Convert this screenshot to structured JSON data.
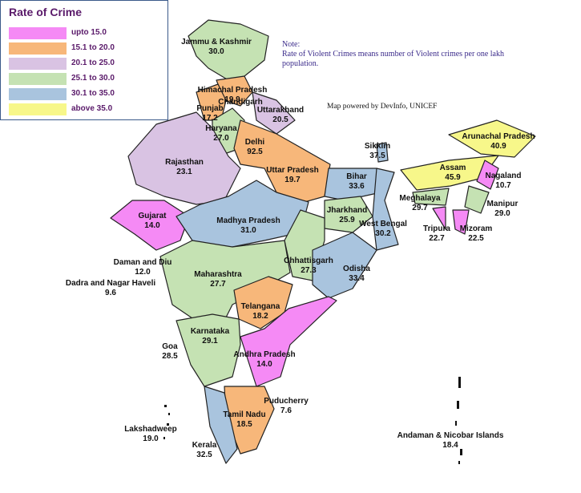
{
  "legend": {
    "title": "Rate of Crime",
    "items": [
      {
        "label": "upto 15.0",
        "color": "#f58af5"
      },
      {
        "label": "15.1 to 20.0",
        "color": "#f7b77a"
      },
      {
        "label": "20.1 to 25.0",
        "color": "#d9c3e3"
      },
      {
        "label": "25.1 to 30.0",
        "color": "#c5e2b3"
      },
      {
        "label": "30.1 to 35.0",
        "color": "#a9c4de"
      },
      {
        "label": "above 35.0",
        "color": "#f7f78a"
      }
    ]
  },
  "note": {
    "heading": "Note:",
    "text": "Rate of Violent Crimes means number of Violent crimes per one lakh population."
  },
  "credit": "Map powered by DevInfo, UNICEF",
  "states": [
    {
      "name": "Jammu & Kashmir",
      "value": "30.0"
    },
    {
      "name": "Himachal Pradesh",
      "value": "19.9"
    },
    {
      "name": "Punjab",
      "value": "17.2"
    },
    {
      "name": "Chandigarh"
    },
    {
      "name": "Haryana",
      "value": "27.0"
    },
    {
      "name": "Uttarakhand",
      "value": "20.5"
    },
    {
      "name": "Delhi",
      "value": "92.5"
    },
    {
      "name": "Rajasthan",
      "value": "23.1"
    },
    {
      "name": "Uttar Pradesh",
      "value": "19.7"
    },
    {
      "name": "Gujarat",
      "value": "14.0"
    },
    {
      "name": "Madhya Pradesh",
      "value": "31.0"
    },
    {
      "name": "Bihar",
      "value": "33.6"
    },
    {
      "name": "Jharkhand",
      "value": "25.9"
    },
    {
      "name": "West Bengal",
      "value": "30.2"
    },
    {
      "name": "Chhattisgarh",
      "value": "27.3"
    },
    {
      "name": "Odisha",
      "value": "33.4"
    },
    {
      "name": "Maharashtra",
      "value": "27.7"
    },
    {
      "name": "Telangana",
      "value": "18.2"
    },
    {
      "name": "Karnataka",
      "value": "29.1"
    },
    {
      "name": "Goa",
      "value": "28.5"
    },
    {
      "name": "Andhra Pradesh",
      "value": "14.0"
    },
    {
      "name": "Tamil Nadu",
      "value": "18.5"
    },
    {
      "name": "Kerala",
      "value": "32.5"
    },
    {
      "name": "Puducherry",
      "value": "7.6"
    },
    {
      "name": "Lakshadweep",
      "value": "19.0"
    },
    {
      "name": "Andaman & Nicobar Islands",
      "value": "18.4"
    },
    {
      "name": "Daman and Diu",
      "value": "12.0"
    },
    {
      "name": "Dadra and Nagar Haveli",
      "value": "9.6"
    },
    {
      "name": "Sikkim",
      "value": "37.5"
    },
    {
      "name": "Arunachal Pradesh",
      "value": "40.9"
    },
    {
      "name": "Assam",
      "value": "45.9"
    },
    {
      "name": "Nagaland",
      "value": "10.7"
    },
    {
      "name": "Meghalaya",
      "value": "29.7"
    },
    {
      "name": "Manipur",
      "value": "29.0"
    },
    {
      "name": "Tripura",
      "value": "22.7"
    },
    {
      "name": "Mizoram",
      "value": "22.5"
    }
  ]
}
